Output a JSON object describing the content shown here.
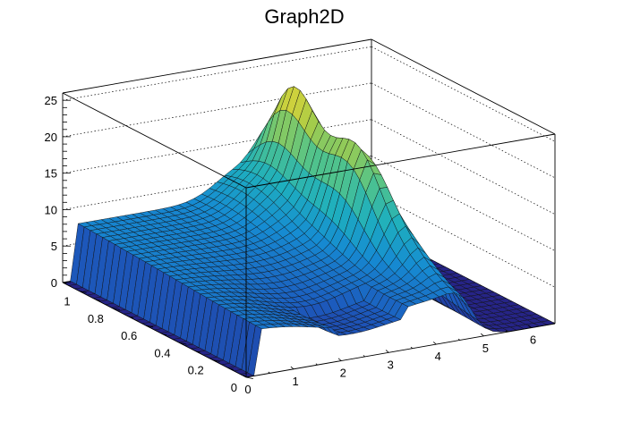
{
  "chart_data": {
    "type": "surface3d",
    "title": "Graph2D",
    "xlabel": "",
    "ylabel": "",
    "zlabel": "",
    "xlim": [
      0,
      6.5
    ],
    "ylim": [
      0,
      1.1
    ],
    "zlim": [
      0,
      26
    ],
    "x_ticks": [
      "0",
      "1",
      "2",
      "3",
      "4",
      "5",
      "6"
    ],
    "y_ticks": [
      "0",
      "0.2",
      "0.4",
      "0.6",
      "0.8",
      "1"
    ],
    "z_ticks": [
      "0",
      "5",
      "10",
      "15",
      "20",
      "25"
    ],
    "grid": true,
    "colormap": "viridis-like (blue to yellow)",
    "features": [
      {
        "name": "plateau",
        "x_range": [
          0.3,
          3.8
        ],
        "y_range": [
          0.0,
          0.85
        ],
        "z": 7
      },
      {
        "name": "ridge",
        "x_range": [
          3.5,
          4.5
        ],
        "y_range": [
          0.75,
          1.1
        ],
        "z": 10
      },
      {
        "name": "peak",
        "x": 4.4,
        "y": 0.9,
        "z": 25.5
      },
      {
        "name": "secondary-peak",
        "x": 4.3,
        "y": 0.55,
        "z": 20
      },
      {
        "name": "flat-floor",
        "x_range": [
          4.9,
          6.5
        ],
        "y_range": [
          0.0,
          1.1
        ],
        "z": 0
      }
    ]
  }
}
